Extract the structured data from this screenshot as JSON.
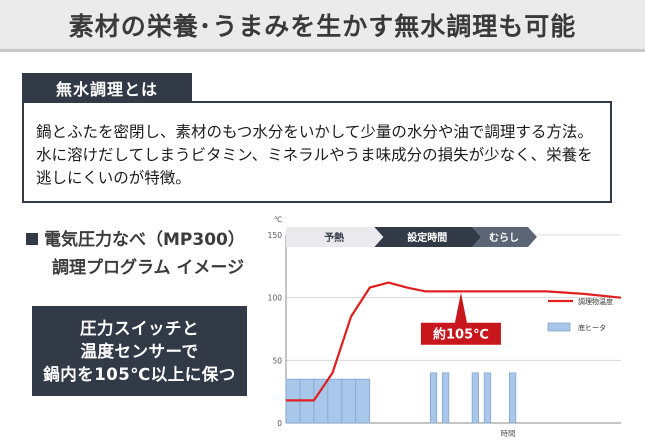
{
  "header": {
    "title": "素材の栄養･うまみを生かす無水調理も可能"
  },
  "section": {
    "tag": "無水調理とは",
    "description_lines": [
      "鍋とふたを密閉し、素材のもつ水分をいかして少量の水分や油で調理する方法。",
      "水に溶けだしてしまうビタミン、ミネラルやうま味成分の損失が少なく、栄養を",
      "逃しにくいのが特徴。"
    ]
  },
  "chart_heading": {
    "line1": "電気圧力なべ（MP300）",
    "line2": "調理プログラム イメージ"
  },
  "callout": {
    "lines": [
      "圧力スイッチと",
      "温度センサーで",
      "鍋内を105℃以上に保つ"
    ]
  },
  "chart_data": {
    "type": "line",
    "y_unit": "℃",
    "ylim": [
      0,
      150
    ],
    "yticks": [
      "0",
      "50",
      "100",
      "150"
    ],
    "xlabel": "時間",
    "phases": [
      "予熱",
      "設定時間",
      "むらし"
    ],
    "temperature_label": "約105℃",
    "series": [
      {
        "name": "調理物温度",
        "color": "#e02020",
        "points": [
          [
            0,
            18
          ],
          [
            3,
            18
          ],
          [
            5,
            40
          ],
          [
            7,
            85
          ],
          [
            9,
            108
          ],
          [
            11,
            112
          ],
          [
            13,
            108
          ],
          [
            15,
            105
          ],
          [
            20,
            105
          ],
          [
            26,
            105
          ],
          [
            28,
            105
          ],
          [
            32,
            103
          ],
          [
            36,
            100
          ]
        ]
      }
    ],
    "heater": {
      "name": "底ヒータ",
      "color": "#a9c7ea",
      "bars": [
        [
          0,
          1.5,
          35
        ],
        [
          1.5,
          3,
          35
        ],
        [
          3,
          4.5,
          35
        ],
        [
          4.5,
          6,
          35
        ],
        [
          6,
          7.5,
          35
        ],
        [
          7.5,
          9,
          35
        ],
        [
          15.5,
          16.2,
          40
        ],
        [
          16.8,
          17.5,
          40
        ],
        [
          20,
          20.7,
          40
        ],
        [
          21.3,
          22,
          40
        ],
        [
          24,
          24.7,
          40
        ]
      ]
    },
    "legend": [
      "調理物温度",
      "底ヒータ"
    ],
    "legend_position": "right"
  }
}
